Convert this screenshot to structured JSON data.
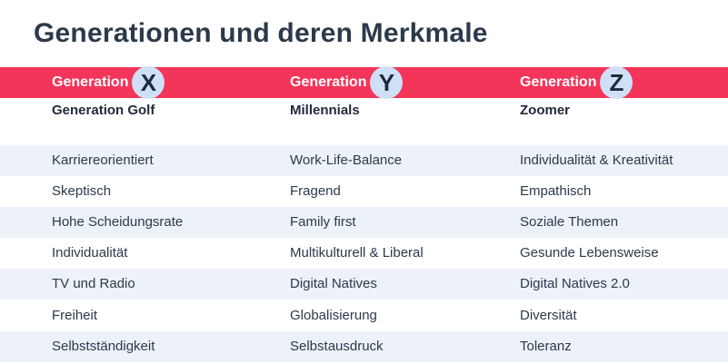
{
  "title": "Generationen und deren Merkmale",
  "colors": {
    "header_bar": "#f3355a",
    "letter_badge": "#cfe0f6",
    "row_shade": "#edf2f8",
    "text": "#2b3a4a"
  },
  "columns": [
    {
      "header": "Generation",
      "letter": "X",
      "subtitle": "Generation Golf"
    },
    {
      "header": "Generation",
      "letter": "Y",
      "subtitle": "Millennials"
    },
    {
      "header": "Generation",
      "letter": "Z",
      "subtitle": "Zoomer"
    }
  ],
  "rows": [
    [
      "Karriereorientiert",
      "Work-Life-Balance",
      "Individualität & Kreativität"
    ],
    [
      "Skeptisch",
      "Fragend",
      "Empathisch"
    ],
    [
      "Hohe Scheidungsrate",
      "Family first",
      "Soziale Themen"
    ],
    [
      "Individualität",
      "Multikulturell & Liberal",
      "Gesunde Lebensweise"
    ],
    [
      "TV und Radio",
      "Digital Natives",
      "Digital Natives 2.0"
    ],
    [
      "Freiheit",
      "Globalisierung",
      "Diversität"
    ],
    [
      "Selbstständigkeit",
      "Selbstausdruck",
      "Toleranz"
    ]
  ]
}
